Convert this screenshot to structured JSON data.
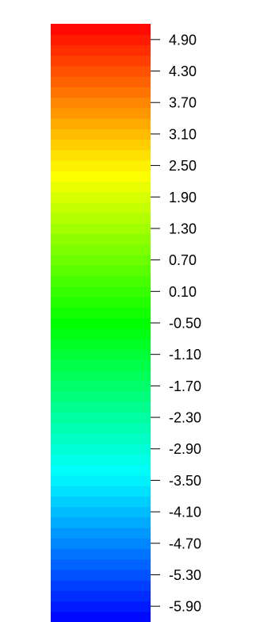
{
  "chart_data": {
    "type": "colorbar",
    "colormap": "jet",
    "orientation": "vertical",
    "range": [
      -6.2,
      5.2
    ],
    "levels": 57,
    "colors": [
      "#0000ff",
      "#00ffff",
      "#00ff00",
      "#ffff00",
      "#ff0000"
    ],
    "tick_values": [
      4.9,
      4.3,
      3.7,
      3.1,
      2.5,
      1.9,
      1.3,
      0.7,
      0.1,
      -0.5,
      -1.1,
      -1.7,
      -2.3,
      -2.9,
      -3.5,
      -4.1,
      -4.7,
      -5.3,
      -5.9
    ],
    "tick_labels": [
      "4.90",
      "4.30",
      "3.70",
      "3.10",
      "2.50",
      "1.90",
      "1.30",
      "0.70",
      "0.10",
      "-0.50",
      "-1.10",
      "-1.70",
      "-2.30",
      "-2.90",
      "-3.50",
      "-4.10",
      "-4.70",
      "-5.30",
      "-5.90"
    ]
  }
}
